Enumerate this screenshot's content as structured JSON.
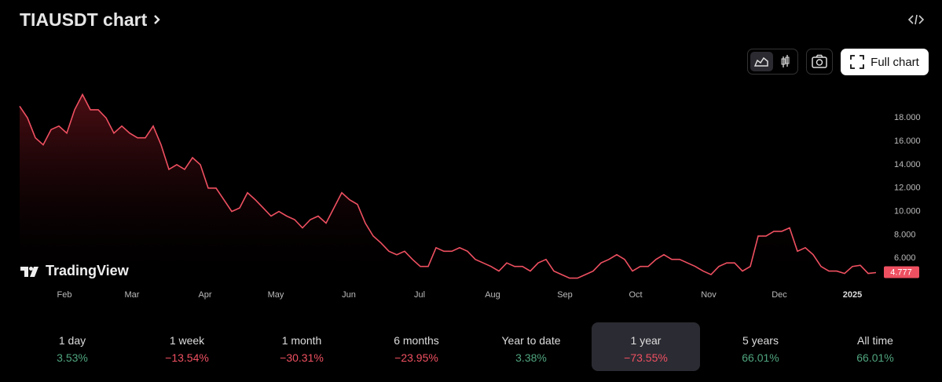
{
  "header": {
    "title": "TIAUSDT chart"
  },
  "toolbar": {
    "full_chart": "Full chart"
  },
  "watermark": "TradingView",
  "chart_data": {
    "type": "area",
    "color": "#ef5061",
    "values": [
      19.0,
      18.0,
      16.3,
      15.7,
      17.0,
      17.3,
      16.7,
      18.7,
      20.0,
      18.7,
      18.7,
      18.0,
      16.7,
      17.3,
      16.7,
      16.3,
      16.3,
      17.3,
      15.7,
      13.6,
      14.0,
      13.6,
      14.6,
      14.0,
      12.0,
      12.0,
      11.0,
      10.0,
      10.3,
      11.6,
      11.0,
      10.3,
      9.6,
      10.0,
      9.6,
      9.3,
      8.6,
      9.3,
      9.6,
      9.0,
      10.3,
      11.6,
      11.0,
      10.6,
      9.0,
      7.9,
      7.3,
      6.6,
      6.3,
      6.6,
      5.9,
      5.3,
      5.3,
      6.9,
      6.6,
      6.6,
      6.9,
      6.6,
      5.9,
      5.6,
      5.3,
      4.9,
      5.6,
      5.3,
      5.3,
      4.9,
      5.6,
      5.9,
      4.9,
      4.6,
      4.3,
      4.3,
      4.6,
      4.9,
      5.6,
      5.9,
      6.3,
      5.9,
      4.9,
      5.3,
      5.3,
      5.9,
      6.3,
      5.9,
      5.9,
      5.6,
      5.3,
      4.9,
      4.6,
      5.3,
      5.6,
      5.6,
      4.9,
      5.3,
      7.9,
      7.9,
      8.3,
      8.3,
      8.6,
      6.6,
      6.9,
      6.3,
      5.3,
      4.9,
      4.9,
      4.7,
      5.3,
      5.4,
      4.7,
      4.777
    ],
    "xlim": [
      0,
      109
    ],
    "xticks": [
      {
        "value": 5.7,
        "label": "Feb"
      },
      {
        "value": 14.3,
        "label": "Mar"
      },
      {
        "value": 23.6,
        "label": "Apr"
      },
      {
        "value": 32.6,
        "label": "May"
      },
      {
        "value": 41.9,
        "label": "Jun"
      },
      {
        "value": 50.9,
        "label": "Jul"
      },
      {
        "value": 60.2,
        "label": "Aug"
      },
      {
        "value": 69.4,
        "label": "Sep"
      },
      {
        "value": 78.4,
        "label": "Oct"
      },
      {
        "value": 87.7,
        "label": "Nov"
      },
      {
        "value": 96.7,
        "label": "Dec"
      },
      {
        "value": 106,
        "label": "2025"
      }
    ],
    "ylim": [
      3.6,
      20.1
    ],
    "yticks": [
      {
        "value": 6,
        "label": "6.000"
      },
      {
        "value": 8,
        "label": "8.000"
      },
      {
        "value": 10,
        "label": "10.000"
      },
      {
        "value": 12,
        "label": "12.000"
      },
      {
        "value": 14,
        "label": "14.000"
      },
      {
        "value": 16,
        "label": "16.000"
      },
      {
        "value": 18,
        "label": "18.000"
      }
    ],
    "grid": false
  },
  "selected_period": 5,
  "periods": [
    {
      "label": "1 day",
      "change": "3.53%",
      "color": "#4fa47e"
    },
    {
      "label": "1 week",
      "change": "−13.54%",
      "color": "#ef5061"
    },
    {
      "label": "1 month",
      "change": "−30.31%",
      "color": "#ef5061"
    },
    {
      "label": "6 months",
      "change": "−23.95%",
      "color": "#ef5061"
    },
    {
      "label": "Year to date",
      "change": "3.38%",
      "color": "#4fa47e"
    },
    {
      "label": "1 year",
      "change": "−73.55%",
      "color": "#ef5061"
    },
    {
      "label": "5 years",
      "change": "66.01%",
      "color": "#4fa47e"
    },
    {
      "label": "All time",
      "change": "66.01%",
      "color": "#4fa47e"
    }
  ]
}
